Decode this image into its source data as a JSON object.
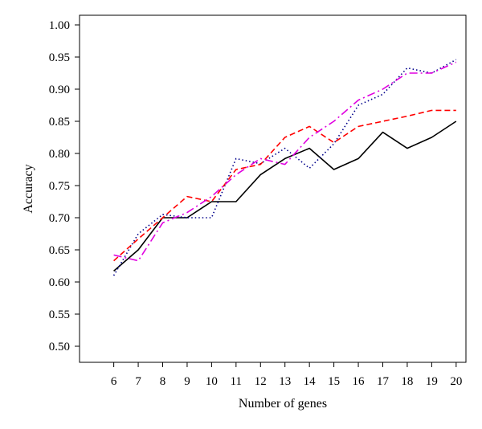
{
  "chart_data": {
    "type": "line",
    "title": "",
    "xlabel": "Number of genes",
    "ylabel": "Accuracy",
    "x": [
      6,
      7,
      8,
      9,
      10,
      11,
      12,
      13,
      14,
      15,
      16,
      17,
      18,
      19,
      20
    ],
    "x_ticks": [
      "6",
      "7",
      "8",
      "9",
      "10",
      "11",
      "12",
      "13",
      "14",
      "15",
      "16",
      "17",
      "18",
      "19",
      "20"
    ],
    "y_ticks": [
      "0.50",
      "0.55",
      "0.60",
      "0.65",
      "0.70",
      "0.75",
      "0.80",
      "0.85",
      "0.90",
      "0.95",
      "1.00"
    ],
    "xlim": [
      4.6,
      20.4
    ],
    "ylim": [
      0.475,
      1.015
    ],
    "grid": false,
    "legend": "none",
    "series": [
      {
        "style": "solid",
        "color": "#000000",
        "values": [
          0.617,
          0.65,
          0.7,
          0.7,
          0.725,
          0.725,
          0.767,
          0.792,
          0.808,
          0.775,
          0.792,
          0.833,
          0.808,
          0.825,
          0.85
        ]
      },
      {
        "style": "dotted",
        "color": "#00008b",
        "values": [
          0.61,
          0.675,
          0.705,
          0.7,
          0.7,
          0.792,
          0.784,
          0.808,
          0.777,
          0.815,
          0.875,
          0.892,
          0.933,
          0.925,
          0.946
        ]
      },
      {
        "style": "dashed",
        "color": "#ff0000",
        "values": [
          0.633,
          0.667,
          0.7,
          0.733,
          0.725,
          0.775,
          0.783,
          0.825,
          0.842,
          0.817,
          0.842,
          0.85,
          0.858,
          0.867,
          0.867
        ]
      },
      {
        "style": "dashdot",
        "color": "#e000e0",
        "values": [
          0.642,
          0.633,
          0.692,
          0.708,
          0.733,
          0.767,
          0.792,
          0.783,
          0.825,
          0.85,
          0.883,
          0.9,
          0.925,
          0.925,
          0.942
        ]
      }
    ]
  }
}
